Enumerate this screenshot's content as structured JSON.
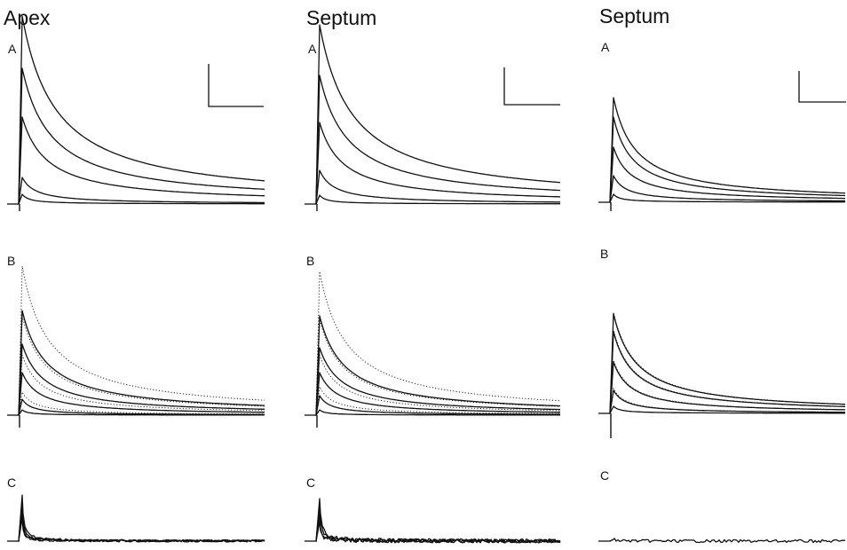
{
  "columns": [
    {
      "title": "Apex",
      "panels": [
        {
          "letter": "A",
          "traces": [
            [
              212,
              0.26
            ],
            [
              153,
              0.3
            ],
            [
              98,
              0.35
            ],
            [
              30,
              0.65
            ],
            [
              11,
              1.2
            ]
          ],
          "dotted": [],
          "scale_bar": true,
          "noise": 0
        },
        {
          "letter": "B",
          "traces": [
            [
              118,
              0.36
            ],
            [
              80,
              0.4
            ],
            [
              48,
              0.5
            ],
            [
              18,
              0.9
            ],
            [
              6,
              1.5
            ]
          ],
          "dotted": [
            [
              168,
              0.33
            ],
            [
              112,
              0.37
            ],
            [
              68,
              0.45
            ],
            [
              26,
              0.7
            ]
          ],
          "scale_bar": false,
          "noise": 0
        },
        {
          "letter": "C",
          "traces": [
            [
              52,
              7
            ],
            [
              42,
              8
            ],
            [
              34,
              9
            ],
            [
              26,
              10
            ]
          ],
          "dotted": [],
          "scale_bar": false,
          "noise": 1.2
        }
      ]
    },
    {
      "title": "Septum",
      "panels": [
        {
          "letter": "A",
          "traces": [
            [
              202,
              0.27
            ],
            [
              145,
              0.31
            ],
            [
              92,
              0.38
            ],
            [
              38,
              0.6
            ],
            [
              10,
              1.3
            ]
          ],
          "dotted": [],
          "scale_bar": true,
          "noise": 0
        },
        {
          "letter": "B",
          "traces": [
            [
              112,
              0.36
            ],
            [
              76,
              0.4
            ],
            [
              48,
              0.5
            ],
            [
              22,
              0.8
            ],
            [
              6,
              1.5
            ]
          ],
          "dotted": [
            [
              162,
              0.33
            ],
            [
              108,
              0.37
            ],
            [
              68,
              0.45
            ],
            [
              32,
              0.65
            ]
          ],
          "scale_bar": false,
          "noise": 0
        },
        {
          "letter": "C",
          "traces": [
            [
              48,
              6
            ],
            [
              40,
              7
            ],
            [
              30,
              8
            ],
            [
              22,
              9
            ]
          ],
          "dotted": [],
          "scale_bar": false,
          "noise": 2.2
        }
      ]
    },
    {
      "title": "Septum",
      "panels": [
        {
          "letter": "A",
          "traces": [
            [
              118,
              0.4
            ],
            [
              96,
              0.45
            ],
            [
              62,
              0.5
            ],
            [
              30,
              0.7
            ],
            [
              9,
              1.3
            ]
          ],
          "dotted": [],
          "scale_bar": true,
          "noise": 0
        },
        {
          "letter": "B",
          "traces": [
            [
              112,
              0.38
            ],
            [
              92,
              0.42
            ],
            [
              58,
              0.5
            ],
            [
              26,
              0.7
            ],
            [
              8,
              1.3
            ]
          ],
          "dotted": [
            [
              114,
              0.38
            ],
            [
              94,
              0.42
            ],
            [
              60,
              0.5
            ],
            [
              28,
              0.7
            ]
          ],
          "scale_bar": false,
          "noise": 0
        },
        {
          "letter": "C",
          "traces": [
            [
              2,
              3
            ]
          ],
          "dotted": [],
          "scale_bar": false,
          "noise": 1.6
        }
      ]
    }
  ]
}
